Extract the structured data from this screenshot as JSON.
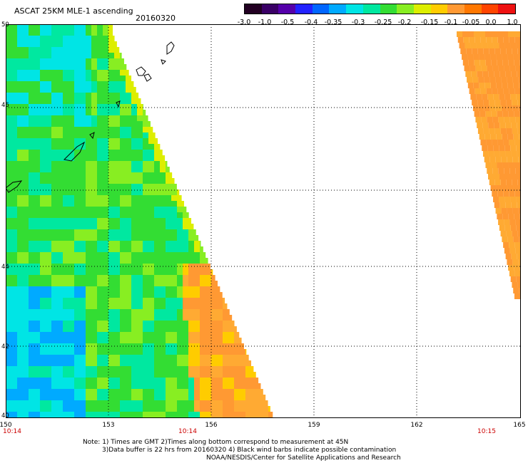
{
  "header": {
    "title": "ASCAT 25KM MLE-1 ascending",
    "date": "20160320"
  },
  "colorbar": {
    "colors": [
      "#220022",
      "#3a0066",
      "#5500aa",
      "#2222ff",
      "#0066ff",
      "#00aaff",
      "#00e5e5",
      "#00e8a0",
      "#33dd33",
      "#88ee22",
      "#ddee00",
      "#ffcc00",
      "#ff9933",
      "#ff7700",
      "#ff4400",
      "#ee1111"
    ],
    "ticks": [
      "-3.0",
      "-1.0",
      "-0.5",
      "-0.4",
      "-0.35",
      "-0.3",
      "-0.25",
      "-0.2",
      "-0.15",
      "-0.1",
      "-0.05",
      "0.0",
      "1.0"
    ]
  },
  "map": {
    "lat_labels": [
      "50",
      "46",
      "46",
      "44",
      "42",
      "40"
    ],
    "lon_labels": [
      "150",
      "153",
      "156",
      "159",
      "162",
      "165"
    ],
    "time_labels": [
      "10:14",
      "10:14",
      "10:15"
    ],
    "lat_range": [
      40,
      50
    ],
    "lon_range": [
      150,
      165
    ]
  },
  "notes": {
    "line1": "Note: 1) Times are GMT 2)Times along bottom correspond to measurement at 45N",
    "line2": "3)Data buffer is 22 hrs from 20160320 4) Black wind barbs indicate possible contamination",
    "line3": "NOAA/NESDIS/Center for Satellite Applications and Research"
  }
}
